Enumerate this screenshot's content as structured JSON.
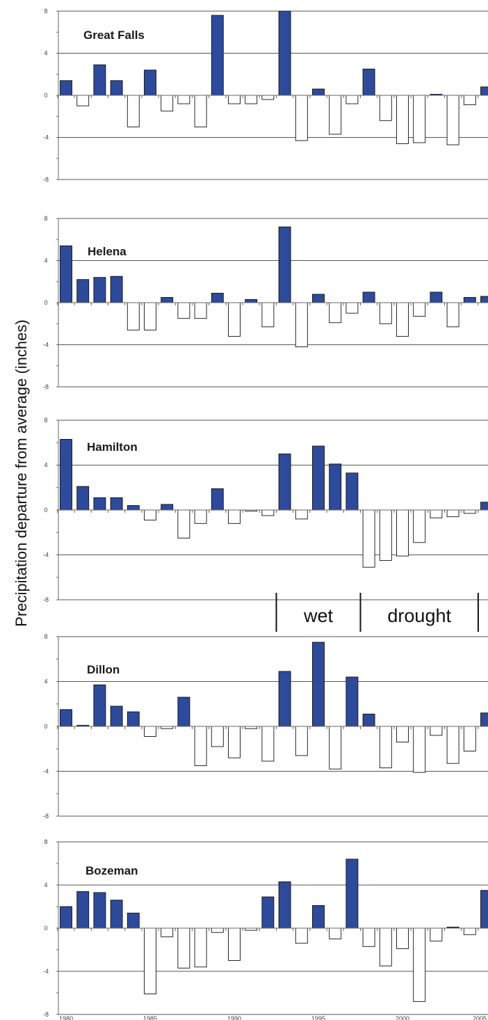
{
  "ylabel": "Precipitation departure from average (inches)",
  "colors": {
    "positive": "#2e4a9b",
    "negative": "#ffffff",
    "stroke": "#111111",
    "gridline": "#555555"
  },
  "period_annotations": [
    {
      "label": "wet",
      "start_year": 1992.5,
      "end_year": 1997.5
    },
    {
      "label": "drought",
      "start_year": 1997.5,
      "end_year": 2004.5
    }
  ],
  "chart_data": [
    {
      "type": "bar",
      "title": "Great Falls",
      "ylim": [
        -8,
        8
      ],
      "yticks": [
        8,
        4,
        0,
        -4,
        -8
      ],
      "xticks": [],
      "grid": true,
      "categories": [
        1980,
        1981,
        1982,
        1983,
        1984,
        1985,
        1986,
        1987,
        1988,
        1989,
        1990,
        1991,
        1992,
        1993,
        1994,
        1995,
        1996,
        1997,
        1998,
        1999,
        2000,
        2001,
        2002,
        2003,
        2004,
        2005
      ],
      "values": [
        1.4,
        -1.0,
        2.9,
        1.4,
        -3.0,
        2.4,
        -1.5,
        -0.8,
        -3.0,
        7.6,
        -0.8,
        -0.8,
        -0.4,
        8.0,
        -4.3,
        0.6,
        -3.7,
        -0.8,
        2.5,
        -2.4,
        -4.6,
        -4.5,
        0.1,
        -4.7,
        -0.9,
        0.8
      ]
    },
    {
      "type": "bar",
      "title": "Helena",
      "ylim": [
        -8,
        8
      ],
      "yticks": [
        8,
        4,
        0,
        -4,
        -8
      ],
      "xticks": [],
      "grid": true,
      "categories": [
        1980,
        1981,
        1982,
        1983,
        1984,
        1985,
        1986,
        1987,
        1988,
        1989,
        1990,
        1991,
        1992,
        1993,
        1994,
        1995,
        1996,
        1997,
        1998,
        1999,
        2000,
        2001,
        2002,
        2003,
        2004,
        2005
      ],
      "values": [
        5.4,
        2.2,
        2.4,
        2.5,
        -2.6,
        -2.6,
        0.5,
        -1.5,
        -1.5,
        0.9,
        -3.2,
        0.3,
        -2.3,
        7.2,
        -4.2,
        0.8,
        -1.9,
        -1.0,
        1.0,
        -2.0,
        -3.2,
        -1.3,
        1.0,
        -2.3,
        0.5,
        0.6
      ]
    },
    {
      "type": "bar",
      "title": "Hamilton",
      "ylim": [
        -8,
        8
      ],
      "yticks": [
        8,
        4,
        0,
        -4,
        -8
      ],
      "xticks": [],
      "grid": true,
      "categories": [
        1980,
        1981,
        1982,
        1983,
        1984,
        1985,
        1986,
        1987,
        1988,
        1989,
        1990,
        1991,
        1992,
        1993,
        1994,
        1995,
        1996,
        1997,
        1998,
        1999,
        2000,
        2001,
        2002,
        2003,
        2004,
        2005
      ],
      "values": [
        6.3,
        2.1,
        1.1,
        1.1,
        0.4,
        -0.9,
        0.5,
        -2.5,
        -1.2,
        1.9,
        -1.2,
        -0.1,
        -0.5,
        5.0,
        -0.8,
        5.7,
        4.1,
        3.3,
        -5.1,
        -4.5,
        -4.1,
        -2.9,
        -0.7,
        -0.6,
        -0.3,
        0.7
      ]
    },
    {
      "type": "bar",
      "title": "Dillon",
      "ylim": [
        -8,
        8
      ],
      "yticks": [
        8,
        4,
        0,
        -4,
        -8
      ],
      "xticks": [],
      "grid": true,
      "categories": [
        1980,
        1981,
        1982,
        1983,
        1984,
        1985,
        1986,
        1987,
        1988,
        1989,
        1990,
        1991,
        1992,
        1993,
        1994,
        1995,
        1996,
        1997,
        1998,
        1999,
        2000,
        2001,
        2002,
        2003,
        2004,
        2005
      ],
      "values": [
        1.5,
        0.1,
        3.7,
        1.8,
        1.3,
        -0.9,
        -0.2,
        2.6,
        -3.5,
        -1.8,
        -2.8,
        -0.2,
        -3.1,
        4.9,
        -2.6,
        7.5,
        -3.8,
        4.4,
        1.1,
        -3.7,
        -1.4,
        -4.1,
        -0.8,
        -3.3,
        -2.2,
        1.2
      ]
    },
    {
      "type": "bar",
      "title": "Bozeman",
      "ylim": [
        -8,
        8
      ],
      "yticks": [
        8,
        4,
        0,
        -4,
        -8
      ],
      "xticks": [
        1980,
        1985,
        1990,
        1995,
        2000,
        2005
      ],
      "grid": true,
      "categories": [
        1980,
        1981,
        1982,
        1983,
        1984,
        1985,
        1986,
        1987,
        1988,
        1989,
        1990,
        1991,
        1992,
        1993,
        1994,
        1995,
        1996,
        1997,
        1998,
        1999,
        2000,
        2001,
        2002,
        2003,
        2004,
        2005
      ],
      "values": [
        2.0,
        3.4,
        3.3,
        2.6,
        1.4,
        -6.1,
        -0.8,
        -3.7,
        -3.6,
        -0.4,
        -3.0,
        -0.2,
        2.9,
        4.3,
        -1.4,
        2.1,
        -1.0,
        6.4,
        -1.7,
        -3.5,
        -1.9,
        -6.8,
        -1.2,
        0.1,
        -0.6,
        3.5
      ]
    }
  ]
}
